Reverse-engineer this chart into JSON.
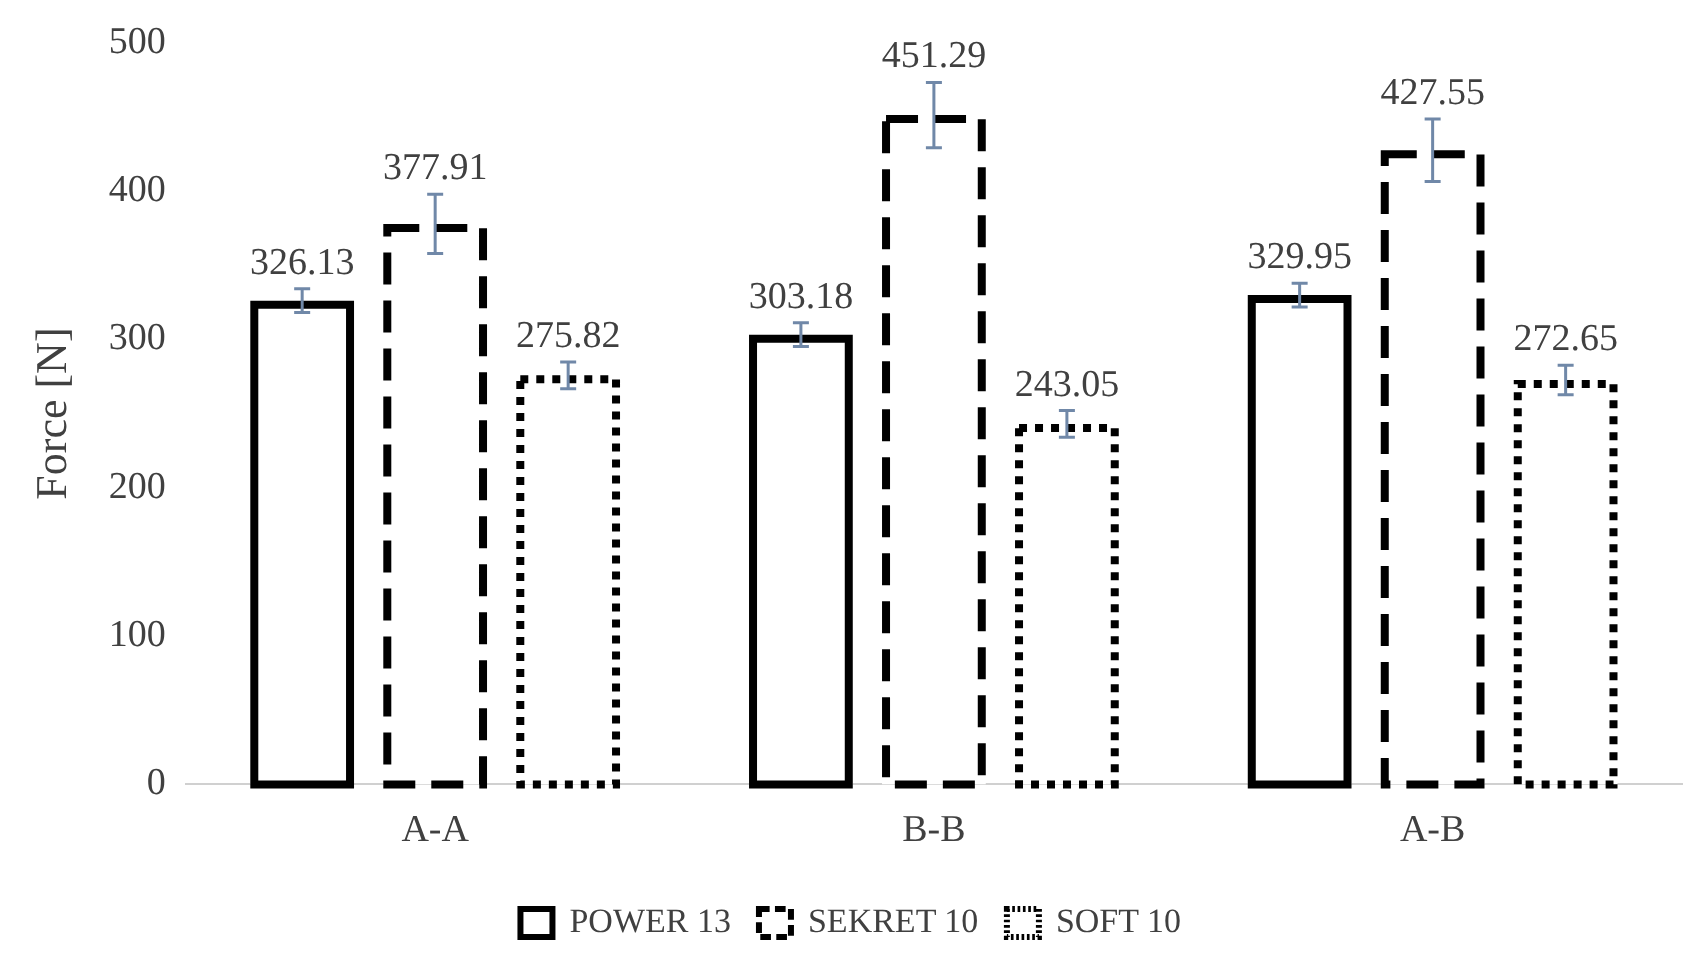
{
  "chart_data": {
    "type": "bar",
    "ylabel": "Force [N]",
    "categories": [
      "A-A",
      "B-B",
      "A-B"
    ],
    "series": [
      {
        "name": "POWER 13",
        "color": "#000000",
        "line_style": "solid",
        "values": [
          326.13,
          303.18,
          329.95
        ],
        "errors": [
          8,
          8,
          8
        ]
      },
      {
        "name": "SEKRET 10",
        "color": "#000000",
        "line_style": "dashed",
        "values": [
          377.91,
          451.29,
          427.55
        ],
        "errors": [
          20,
          22,
          21
        ]
      },
      {
        "name": "SOFT 10",
        "color": "#000000",
        "line_style": "dotted",
        "values": [
          275.82,
          243.05,
          272.65
        ],
        "errors": [
          9,
          9,
          10
        ]
      }
    ],
    "ylim": [
      0,
      500
    ],
    "yticks": [
      0,
      100,
      200,
      300,
      400,
      500
    ],
    "grid": false,
    "legend": "bottom",
    "data_labels": true
  }
}
